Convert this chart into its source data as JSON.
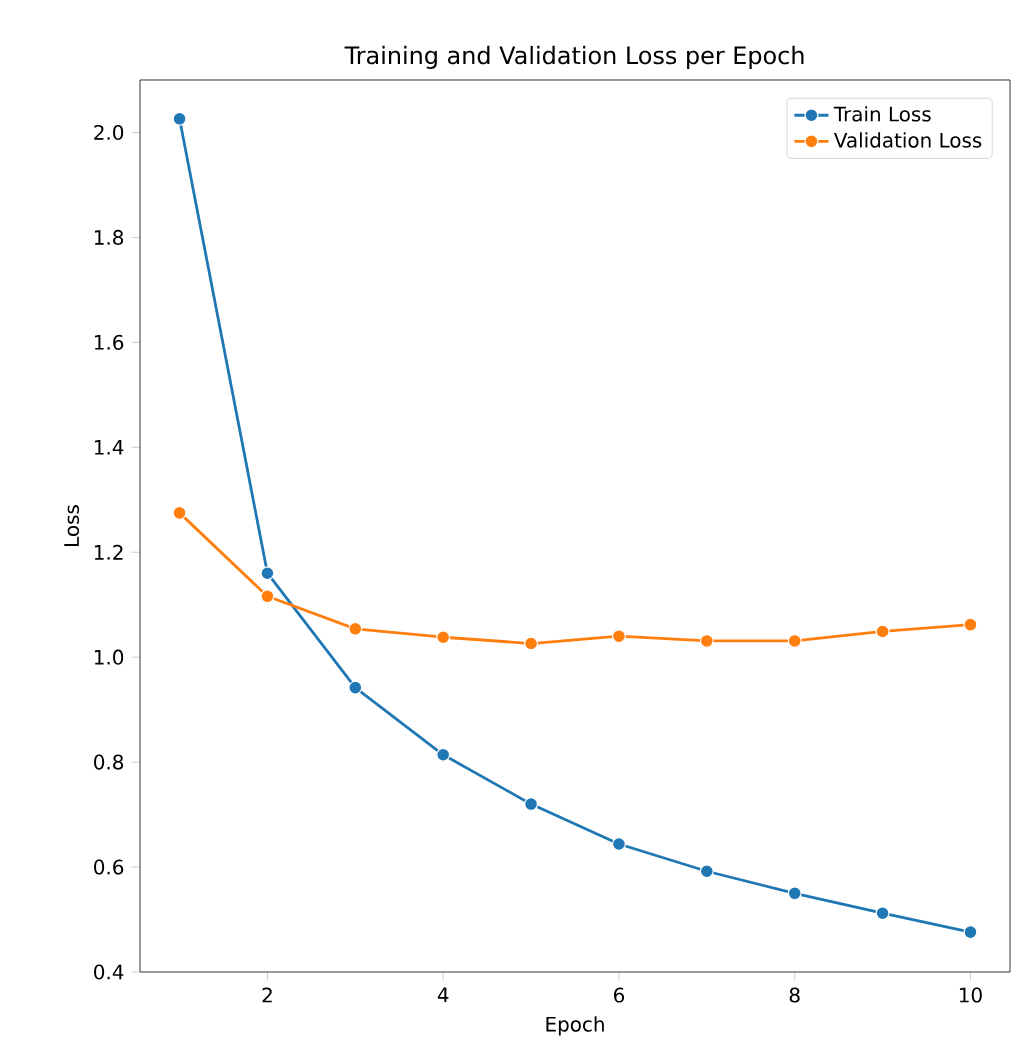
{
  "chart_data": {
    "type": "line",
    "title": "Training and Validation Loss per Epoch",
    "xlabel": "Epoch",
    "ylabel": "Loss",
    "x": [
      1,
      2,
      3,
      4,
      5,
      6,
      7,
      8,
      9,
      10
    ],
    "series": [
      {
        "name": "Train Loss",
        "color": "#1f77b4",
        "values": [
          2.026,
          1.16,
          0.942,
          0.814,
          0.72,
          0.644,
          0.592,
          0.55,
          0.512,
          0.476
        ]
      },
      {
        "name": "Validation Loss",
        "color": "#ff7f0e",
        "values": [
          1.275,
          1.116,
          1.054,
          1.038,
          1.026,
          1.04,
          1.031,
          1.031,
          1.049,
          1.062
        ]
      }
    ],
    "xlim": [
      0.55,
      10.45
    ],
    "ylim": [
      0.4,
      2.1
    ],
    "xticks": [
      2,
      4,
      6,
      8,
      10
    ],
    "yticks": [
      {
        "value": 0.4,
        "label": "0.4"
      },
      {
        "value": 0.6,
        "label": "0.6"
      },
      {
        "value": 0.8,
        "label": "0.8"
      },
      {
        "value": 1.0,
        "label": "1.0"
      },
      {
        "value": 1.2,
        "label": "1.2"
      },
      {
        "value": 1.4,
        "label": "1.4"
      },
      {
        "value": 1.6,
        "label": "1.6"
      },
      {
        "value": 1.8,
        "label": "1.8"
      },
      {
        "value": 2.0,
        "label": "2.0"
      }
    ],
    "legend": "top right",
    "marker": "circle",
    "line_style": "solid",
    "grid": false
  }
}
